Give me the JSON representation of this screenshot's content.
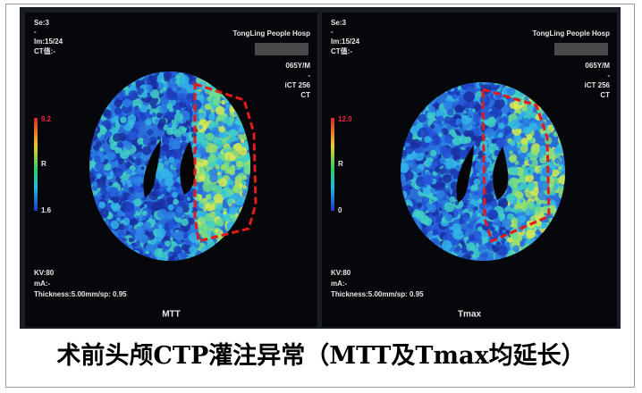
{
  "caption": "术前头颅CTP灌注异常（MTT及Tmax均延长）",
  "panels": [
    {
      "series": "Se:3",
      "series_dash": "-",
      "image": "Im:15/24",
      "ct_value": "CT值:-",
      "hospital": "TongLing People Hosp",
      "patient": "065Y/M",
      "scanner_dash": "-",
      "scanner": "iCT 256",
      "modality": "CT",
      "scale_max": "9.2",
      "scale_mid": "R",
      "scale_min": "1.6",
      "kv": "KV:80",
      "ma": "mA:-",
      "thickness": "Thickness:5.00mm/sp: 0.95",
      "label": "MTT"
    },
    {
      "series": "Se:3",
      "series_dash": "-",
      "image": "Im:15/24",
      "ct_value": "CT值:-",
      "hospital": "TongLing People Hosp",
      "patient": "065Y/M",
      "scanner_dash": "-",
      "scanner": "iCT 256",
      "modality": "CT",
      "scale_max": "12.0",
      "scale_mid": "R",
      "scale_min": "0",
      "kv": "KV:80",
      "ma": "mA:-",
      "thickness": "Thickness:5.00mm/sp: 0.95",
      "label": "Tmax"
    }
  ]
}
